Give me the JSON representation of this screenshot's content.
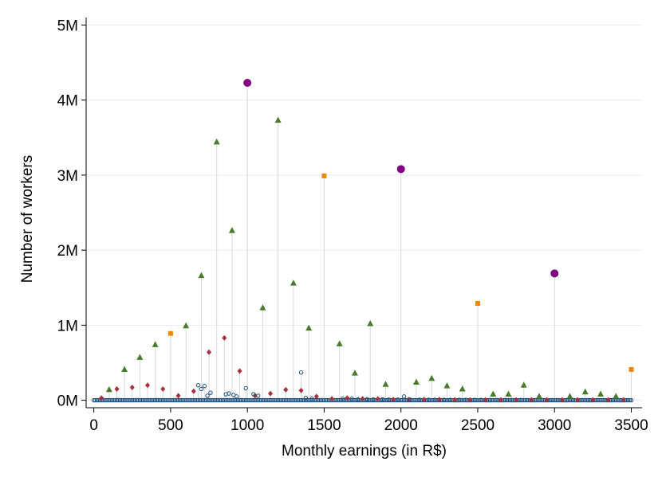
{
  "chart_data": {
    "type": "scatter",
    "title": "",
    "xlabel": "Monthly earnings (in R$)",
    "ylabel": "Number of workers",
    "xlim": [
      -50,
      3570
    ],
    "ylim": [
      -100000,
      5100000
    ],
    "x_ticks": [
      0,
      500,
      1000,
      1500,
      2000,
      2500,
      3000,
      3500
    ],
    "x_tick_labels": [
      "0",
      "500",
      "1000",
      "1500",
      "2000",
      "2500",
      "3000",
      "3500"
    ],
    "y_ticks": [
      0,
      1000000,
      2000000,
      3000000,
      4000000,
      5000000
    ],
    "y_tick_labels": [
      "0M",
      "1M",
      "2M",
      "3M",
      "4M",
      "5M"
    ],
    "grid": "horizontal",
    "legend": "none",
    "colors": {
      "drop_line": "#d9d9d9",
      "multiple_1000": "#800080",
      "multiple_500": "#ee8800",
      "multiple_100": "#4a7a2c",
      "multiple_50": "#a8323c",
      "other": "#1f4e79",
      "grid": "#e6eef2"
    },
    "series": [
      {
        "marker": "circle",
        "points": [
          [
            1000,
            4230000
          ],
          [
            2000,
            3080000
          ],
          [
            3000,
            1690000
          ]
        ]
      },
      {
        "marker": "square",
        "points": [
          [
            500,
            890000
          ],
          [
            1500,
            2990000
          ],
          [
            2500,
            1290000
          ],
          [
            3500,
            410000
          ]
        ]
      },
      {
        "marker": "triangle",
        "points": [
          [
            100,
            140000
          ],
          [
            200,
            410000
          ],
          [
            300,
            570000
          ],
          [
            400,
            740000
          ],
          [
            600,
            990000
          ],
          [
            700,
            1660000
          ],
          [
            800,
            3440000
          ],
          [
            900,
            2260000
          ],
          [
            1100,
            1230000
          ],
          [
            1200,
            3730000
          ],
          [
            1300,
            1560000
          ],
          [
            1400,
            960000
          ],
          [
            1600,
            750000
          ],
          [
            1700,
            360000
          ],
          [
            1800,
            1020000
          ],
          [
            1900,
            210000
          ],
          [
            2100,
            240000
          ],
          [
            2200,
            290000
          ],
          [
            2300,
            190000
          ],
          [
            2400,
            150000
          ],
          [
            2600,
            80000
          ],
          [
            2700,
            80000
          ],
          [
            2800,
            200000
          ],
          [
            2900,
            50000
          ],
          [
            3100,
            50000
          ],
          [
            3200,
            110000
          ],
          [
            3300,
            80000
          ],
          [
            3400,
            50000
          ]
        ]
      },
      {
        "marker": "diamond",
        "points": [
          [
            50,
            30000
          ],
          [
            150,
            150000
          ],
          [
            250,
            170000
          ],
          [
            350,
            200000
          ],
          [
            450,
            150000
          ],
          [
            550,
            60000
          ],
          [
            650,
            120000
          ],
          [
            750,
            640000
          ],
          [
            850,
            830000
          ],
          [
            950,
            390000
          ],
          [
            1050,
            60000
          ],
          [
            1150,
            90000
          ],
          [
            1250,
            140000
          ],
          [
            1350,
            130000
          ],
          [
            1450,
            50000
          ],
          [
            1550,
            20000
          ],
          [
            1650,
            30000
          ],
          [
            1750,
            20000
          ],
          [
            1850,
            20000
          ],
          [
            1950,
            10000
          ],
          [
            2050,
            10000
          ],
          [
            2150,
            10000
          ],
          [
            2250,
            10000
          ],
          [
            2350,
            5000
          ],
          [
            2450,
            5000
          ],
          [
            2550,
            5000
          ],
          [
            2650,
            5000
          ],
          [
            2750,
            5000
          ],
          [
            2850,
            5000
          ],
          [
            2950,
            5000
          ],
          [
            3050,
            5000
          ],
          [
            3150,
            5000
          ],
          [
            3250,
            5000
          ],
          [
            3350,
            5000
          ],
          [
            3450,
            5000
          ]
        ]
      },
      {
        "marker": "hollow-circle",
        "points": [
          [
            680,
            200000
          ],
          [
            700,
            150000
          ],
          [
            720,
            190000
          ],
          [
            740,
            60000
          ],
          [
            760,
            100000
          ],
          [
            860,
            80000
          ],
          [
            880,
            90000
          ],
          [
            910,
            70000
          ],
          [
            930,
            50000
          ],
          [
            990,
            160000
          ],
          [
            1040,
            80000
          ],
          [
            1070,
            60000
          ],
          [
            1350,
            370000
          ],
          [
            1380,
            30000
          ],
          [
            1420,
            20000
          ],
          [
            1620,
            20000
          ],
          [
            1680,
            20000
          ],
          [
            1720,
            10000
          ],
          [
            1780,
            15000
          ],
          [
            1820,
            10000
          ],
          [
            1880,
            10000
          ],
          [
            1920,
            8000
          ],
          [
            1980,
            8000
          ],
          [
            2020,
            50000
          ],
          [
            2060,
            8000
          ],
          [
            2120,
            6000
          ],
          [
            2180,
            6000
          ],
          [
            2220,
            5000
          ],
          [
            2280,
            5000
          ],
          [
            2320,
            5000
          ],
          [
            2380,
            5000
          ],
          [
            2420,
            4000
          ],
          [
            2480,
            4000
          ],
          [
            2520,
            4000
          ],
          [
            2580,
            3000
          ],
          [
            2620,
            3000
          ],
          [
            2680,
            3000
          ],
          [
            2720,
            3000
          ],
          [
            2780,
            3000
          ],
          [
            2820,
            2000
          ],
          [
            2880,
            2000
          ],
          [
            2920,
            2000
          ],
          [
            2980,
            2000
          ],
          [
            3020,
            2000
          ],
          [
            3080,
            2000
          ],
          [
            3120,
            2000
          ],
          [
            3180,
            2000
          ],
          [
            3220,
            2000
          ],
          [
            3280,
            2000
          ],
          [
            3320,
            2000
          ],
          [
            3380,
            2000
          ],
          [
            3420,
            2000
          ],
          [
            3480,
            2000
          ]
        ]
      }
    ]
  }
}
